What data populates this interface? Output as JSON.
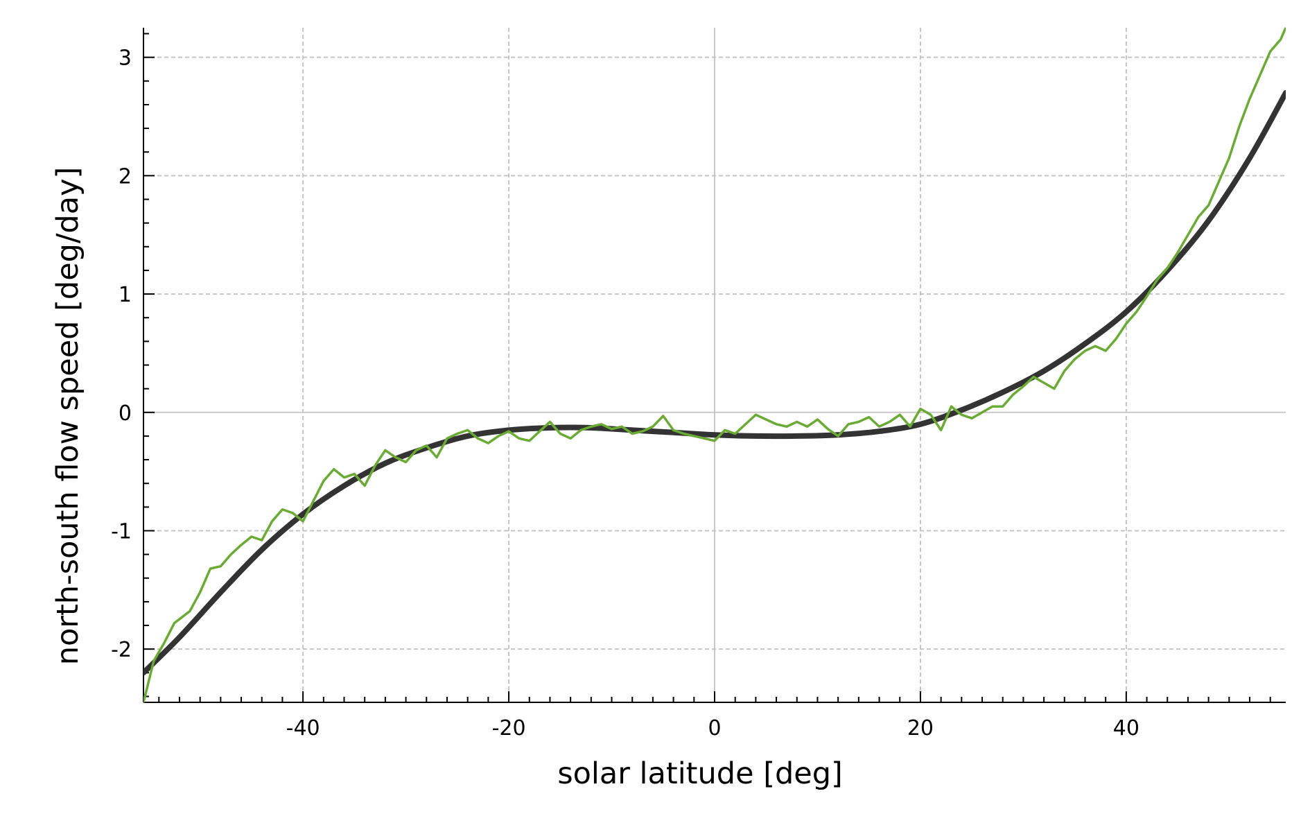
{
  "chart_data": {
    "type": "line",
    "title": "",
    "xlabel": "solar latitude [deg]",
    "ylabel": "north-south flow speed [deg/day]",
    "xlim": [
      -55.5,
      55.5
    ],
    "ylim": [
      -2.45,
      3.25
    ],
    "xticks": [
      -40,
      -20,
      0,
      20,
      40
    ],
    "yticks": [
      -2,
      -1,
      0,
      1,
      2,
      3
    ],
    "xtick_labels": [
      "-40",
      "-20",
      "0",
      "20",
      "40"
    ],
    "ytick_labels": [
      "-2",
      "-1",
      "0",
      "1",
      "2",
      "3"
    ],
    "grid": true,
    "legend": "none",
    "series": [
      {
        "kind": "fit",
        "color": "#333333",
        "x": [
          -55.5,
          -52,
          -48,
          -44,
          -40,
          -36,
          -32,
          -28,
          -24,
          -20,
          -16,
          -12,
          -8,
          -4,
          0,
          4,
          8,
          12,
          16,
          20,
          24,
          28,
          32,
          36,
          40,
          44,
          48,
          52,
          55.5
        ],
        "y": [
          -2.2,
          -1.9,
          -1.52,
          -1.16,
          -0.86,
          -0.62,
          -0.43,
          -0.3,
          -0.2,
          -0.15,
          -0.13,
          -0.13,
          -0.15,
          -0.17,
          -0.19,
          -0.2,
          -0.2,
          -0.19,
          -0.16,
          -0.1,
          0.02,
          0.17,
          0.35,
          0.58,
          0.85,
          1.2,
          1.62,
          2.15,
          2.7
        ]
      },
      {
        "kind": "measured",
        "color": "#6aaa35",
        "x": [
          -55.5,
          -54.5,
          -53.5,
          -52.5,
          -51,
          -50,
          -49,
          -48,
          -47,
          -46,
          -45,
          -44,
          -43,
          -42,
          -41,
          -40,
          -39,
          -38,
          -37,
          -36,
          -35,
          -34,
          -33,
          -32,
          -31,
          -30,
          -29,
          -28,
          -27,
          -26,
          -25,
          -24,
          -23,
          -22,
          -21,
          -20,
          -19,
          -18,
          -17,
          -16,
          -15,
          -14,
          -13,
          -12,
          -11,
          -10,
          -9,
          -8,
          -7,
          -6,
          -5,
          -4,
          -3,
          -2,
          -1,
          0,
          1,
          2,
          3,
          4,
          5,
          6,
          7,
          8,
          9,
          10,
          11,
          12,
          13,
          14,
          15,
          16,
          17,
          18,
          19,
          20,
          21,
          22,
          23,
          24,
          25,
          26,
          27,
          28,
          29,
          30,
          31,
          32,
          33,
          34,
          35,
          36,
          37,
          38,
          39,
          40,
          41,
          42,
          43,
          44,
          45,
          46,
          47,
          48,
          49,
          50,
          51,
          52,
          53,
          54,
          55,
          55.5
        ],
        "y": [
          -2.45,
          -2.1,
          -1.95,
          -1.78,
          -1.68,
          -1.52,
          -1.32,
          -1.3,
          -1.2,
          -1.12,
          -1.05,
          -1.08,
          -0.92,
          -0.82,
          -0.85,
          -0.92,
          -0.75,
          -0.58,
          -0.48,
          -0.55,
          -0.52,
          -0.62,
          -0.45,
          -0.32,
          -0.38,
          -0.42,
          -0.32,
          -0.28,
          -0.38,
          -0.22,
          -0.18,
          -0.15,
          -0.22,
          -0.26,
          -0.2,
          -0.16,
          -0.22,
          -0.24,
          -0.16,
          -0.08,
          -0.18,
          -0.22,
          -0.15,
          -0.12,
          -0.1,
          -0.14,
          -0.12,
          -0.18,
          -0.16,
          -0.12,
          -0.03,
          -0.15,
          -0.18,
          -0.2,
          -0.22,
          -0.24,
          -0.15,
          -0.18,
          -0.1,
          -0.02,
          -0.06,
          -0.1,
          -0.12,
          -0.08,
          -0.12,
          -0.06,
          -0.14,
          -0.2,
          -0.1,
          -0.08,
          -0.04,
          -0.12,
          -0.08,
          -0.02,
          -0.12,
          0.03,
          -0.02,
          -0.15,
          0.05,
          -0.02,
          -0.05,
          0.0,
          0.05,
          0.05,
          0.15,
          0.22,
          0.3,
          0.25,
          0.2,
          0.35,
          0.45,
          0.52,
          0.56,
          0.52,
          0.62,
          0.75,
          0.85,
          0.98,
          1.12,
          1.22,
          1.35,
          1.5,
          1.65,
          1.75,
          1.95,
          2.15,
          2.42,
          2.65,
          2.85,
          3.05,
          3.15,
          3.25
        ]
      }
    ]
  }
}
